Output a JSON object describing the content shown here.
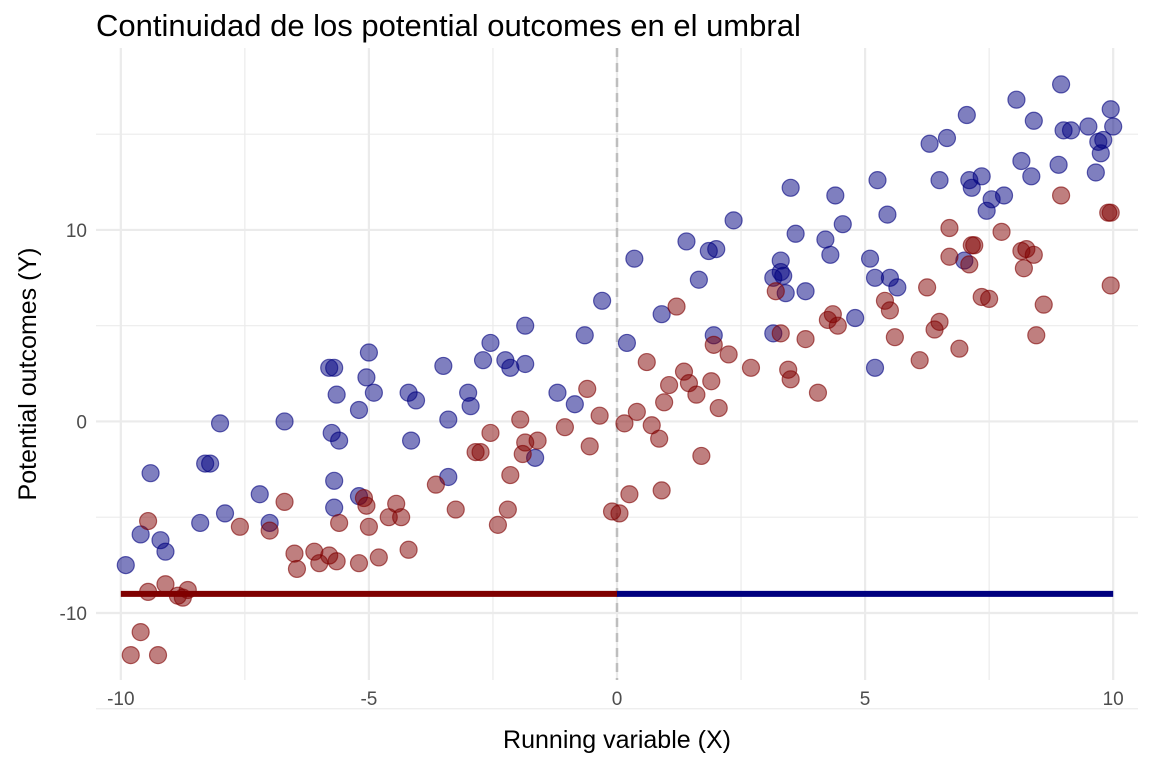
{
  "chart_data": {
    "type": "scatter",
    "title": "Continuidad de los potential outcomes en el umbral",
    "xlabel": "Running variable (X)",
    "ylabel": "Potential outcomes (Y)",
    "xlim": [
      -10.5,
      10.5
    ],
    "ylim": [
      -13.5,
      19.5
    ],
    "x_ticks": [
      -10,
      -5,
      0,
      5,
      10
    ],
    "x_tick_labels": [
      "-10",
      "-5",
      "0",
      "5",
      "10"
    ],
    "y_ticks": [
      -10,
      0,
      10
    ],
    "y_tick_labels": [
      "-10",
      "0",
      "10"
    ],
    "grid": true,
    "cutoff_x": 0,
    "colors": {
      "series_a": "#00007f",
      "series_b": "#7f0000",
      "grid": "#ebebeb",
      "cutoff": "#bebebe"
    },
    "series": [
      {
        "color": "#00007f",
        "points": [
          [
            -9.9,
            -7.5
          ],
          [
            -9.6,
            -5.9
          ],
          [
            -9.4,
            -2.7
          ],
          [
            -9.2,
            -6.2
          ],
          [
            -9.1,
            -6.8
          ],
          [
            -8.4,
            -5.3
          ],
          [
            -8.3,
            -2.2
          ],
          [
            -8.2,
            -2.2
          ],
          [
            -8.0,
            -0.1
          ],
          [
            -7.9,
            -4.8
          ],
          [
            -7.2,
            -3.8
          ],
          [
            -7.0,
            -5.3
          ],
          [
            -6.7,
            0.0
          ],
          [
            -5.8,
            2.8
          ],
          [
            -5.7,
            2.8
          ],
          [
            -5.75,
            -0.6
          ],
          [
            -5.6,
            -1.0
          ],
          [
            -5.65,
            1.4
          ],
          [
            -5.7,
            -3.1
          ],
          [
            -5.7,
            -4.5
          ],
          [
            -5.2,
            -3.9
          ],
          [
            -5.2,
            0.6
          ],
          [
            -5.05,
            2.3
          ],
          [
            -5.0,
            3.6
          ],
          [
            -4.9,
            1.5
          ],
          [
            -4.2,
            1.5
          ],
          [
            -4.05,
            1.1
          ],
          [
            -4.15,
            -1.0
          ],
          [
            -3.5,
            2.9
          ],
          [
            -3.4,
            0.1
          ],
          [
            -3.4,
            -2.9
          ],
          [
            -3.0,
            1.5
          ],
          [
            -2.95,
            0.8
          ],
          [
            -2.7,
            3.2
          ],
          [
            -2.55,
            4.1
          ],
          [
            -2.25,
            3.2
          ],
          [
            -2.15,
            2.8
          ],
          [
            -1.85,
            5.0
          ],
          [
            -1.85,
            3.0
          ],
          [
            -1.65,
            -1.9
          ],
          [
            -1.2,
            1.5
          ],
          [
            -0.85,
            0.9
          ],
          [
            -0.65,
            4.5
          ],
          [
            -0.3,
            6.3
          ],
          [
            0.2,
            4.1
          ],
          [
            0.35,
            8.5
          ],
          [
            0.9,
            5.6
          ],
          [
            1.4,
            9.4
          ],
          [
            1.65,
            7.4
          ],
          [
            1.85,
            8.9
          ],
          [
            1.95,
            4.5
          ],
          [
            2.0,
            9.0
          ],
          [
            2.35,
            10.5
          ],
          [
            3.15,
            7.5
          ],
          [
            3.15,
            4.6
          ],
          [
            3.3,
            8.4
          ],
          [
            3.3,
            7.8
          ],
          [
            3.35,
            7.6
          ],
          [
            3.4,
            6.7
          ],
          [
            3.5,
            12.2
          ],
          [
            3.6,
            9.8
          ],
          [
            3.8,
            6.8
          ],
          [
            4.2,
            9.5
          ],
          [
            4.3,
            8.7
          ],
          [
            4.4,
            11.8
          ],
          [
            4.55,
            10.3
          ],
          [
            4.8,
            5.4
          ],
          [
            5.1,
            8.5
          ],
          [
            5.2,
            7.5
          ],
          [
            5.2,
            2.8
          ],
          [
            5.25,
            12.6
          ],
          [
            5.45,
            10.8
          ],
          [
            5.5,
            7.5
          ],
          [
            5.65,
            7.0
          ],
          [
            6.3,
            14.5
          ],
          [
            6.5,
            12.6
          ],
          [
            6.65,
            14.8
          ],
          [
            7.0,
            8.4
          ],
          [
            7.05,
            16.0
          ],
          [
            7.1,
            12.6
          ],
          [
            7.15,
            12.2
          ],
          [
            7.35,
            12.8
          ],
          [
            7.45,
            11.0
          ],
          [
            7.55,
            11.6
          ],
          [
            7.8,
            11.8
          ],
          [
            8.05,
            16.8
          ],
          [
            8.15,
            13.6
          ],
          [
            8.35,
            12.8
          ],
          [
            8.4,
            15.7
          ],
          [
            8.9,
            13.4
          ],
          [
            8.95,
            17.6
          ],
          [
            9.0,
            15.2
          ],
          [
            9.15,
            15.2
          ],
          [
            9.5,
            15.4
          ],
          [
            9.65,
            13.0
          ],
          [
            9.7,
            14.6
          ],
          [
            9.75,
            14.0
          ],
          [
            9.8,
            14.7
          ],
          [
            9.95,
            16.3
          ],
          [
            10.0,
            15.4
          ]
        ]
      },
      {
        "color": "#7f0000",
        "points": [
          [
            -9.8,
            -12.2
          ],
          [
            -9.6,
            -11.0
          ],
          [
            -9.45,
            -5.2
          ],
          [
            -9.45,
            -8.9
          ],
          [
            -9.25,
            -12.2
          ],
          [
            -9.1,
            -8.5
          ],
          [
            -8.85,
            -9.1
          ],
          [
            -8.75,
            -9.2
          ],
          [
            -8.65,
            -8.8
          ],
          [
            -7.6,
            -5.5
          ],
          [
            -7.0,
            -5.7
          ],
          [
            -6.7,
            -4.2
          ],
          [
            -6.5,
            -6.9
          ],
          [
            -6.45,
            -7.7
          ],
          [
            -6.1,
            -6.8
          ],
          [
            -6.0,
            -7.4
          ],
          [
            -5.8,
            -7.0
          ],
          [
            -5.65,
            -7.3
          ],
          [
            -5.6,
            -5.3
          ],
          [
            -5.2,
            -7.4
          ],
          [
            -5.1,
            -4.0
          ],
          [
            -5.05,
            -4.4
          ],
          [
            -5.0,
            -5.5
          ],
          [
            -4.8,
            -7.1
          ],
          [
            -4.6,
            -5.0
          ],
          [
            -4.45,
            -4.3
          ],
          [
            -4.35,
            -5.0
          ],
          [
            -4.2,
            -6.7
          ],
          [
            -3.65,
            -3.3
          ],
          [
            -3.25,
            -4.6
          ],
          [
            -2.85,
            -1.6
          ],
          [
            -2.75,
            -1.6
          ],
          [
            -2.55,
            -0.6
          ],
          [
            -2.4,
            -5.4
          ],
          [
            -2.2,
            -4.6
          ],
          [
            -2.15,
            -2.8
          ],
          [
            -1.95,
            0.1
          ],
          [
            -1.9,
            -1.7
          ],
          [
            -1.85,
            -1.1
          ],
          [
            -1.6,
            -1.0
          ],
          [
            -1.05,
            -0.3
          ],
          [
            -0.6,
            1.7
          ],
          [
            -0.55,
            -1.3
          ],
          [
            -0.35,
            0.3
          ],
          [
            -0.1,
            -4.7
          ],
          [
            0.05,
            -4.8
          ],
          [
            0.15,
            -0.1
          ],
          [
            0.25,
            -3.8
          ],
          [
            0.4,
            0.5
          ],
          [
            0.6,
            3.1
          ],
          [
            0.7,
            -0.2
          ],
          [
            0.85,
            -0.9
          ],
          [
            0.9,
            -3.6
          ],
          [
            0.95,
            1.0
          ],
          [
            1.05,
            1.9
          ],
          [
            1.2,
            6.0
          ],
          [
            1.35,
            2.6
          ],
          [
            1.45,
            2.0
          ],
          [
            1.6,
            1.4
          ],
          [
            1.7,
            -1.8
          ],
          [
            1.9,
            2.1
          ],
          [
            1.95,
            4.0
          ],
          [
            2.05,
            0.7
          ],
          [
            2.25,
            3.5
          ],
          [
            2.7,
            2.8
          ],
          [
            3.2,
            6.8
          ],
          [
            3.3,
            4.6
          ],
          [
            3.45,
            2.7
          ],
          [
            3.5,
            2.2
          ],
          [
            3.8,
            4.3
          ],
          [
            4.05,
            1.5
          ],
          [
            4.25,
            5.3
          ],
          [
            4.35,
            5.6
          ],
          [
            4.45,
            5.0
          ],
          [
            5.4,
            6.3
          ],
          [
            5.5,
            5.8
          ],
          [
            5.6,
            4.4
          ],
          [
            6.1,
            3.2
          ],
          [
            6.25,
            7.0
          ],
          [
            6.4,
            4.8
          ],
          [
            6.5,
            5.2
          ],
          [
            6.7,
            10.1
          ],
          [
            6.7,
            8.6
          ],
          [
            6.9,
            3.8
          ],
          [
            7.1,
            8.2
          ],
          [
            7.15,
            9.2
          ],
          [
            7.2,
            9.2
          ],
          [
            7.35,
            6.5
          ],
          [
            7.5,
            6.4
          ],
          [
            7.75,
            9.9
          ],
          [
            8.15,
            8.9
          ],
          [
            8.2,
            8.0
          ],
          [
            8.25,
            9.0
          ],
          [
            8.4,
            8.7
          ],
          [
            8.45,
            4.5
          ],
          [
            8.6,
            6.1
          ],
          [
            8.95,
            11.8
          ],
          [
            9.9,
            10.9
          ],
          [
            9.95,
            10.9
          ],
          [
            9.95,
            7.1
          ]
        ]
      }
    ],
    "segments": [
      {
        "color": "#7f0000",
        "x": [
          -10,
          0
        ],
        "y": -9
      },
      {
        "color": "#00007f",
        "x": [
          0,
          10
        ],
        "y": -9
      }
    ]
  }
}
